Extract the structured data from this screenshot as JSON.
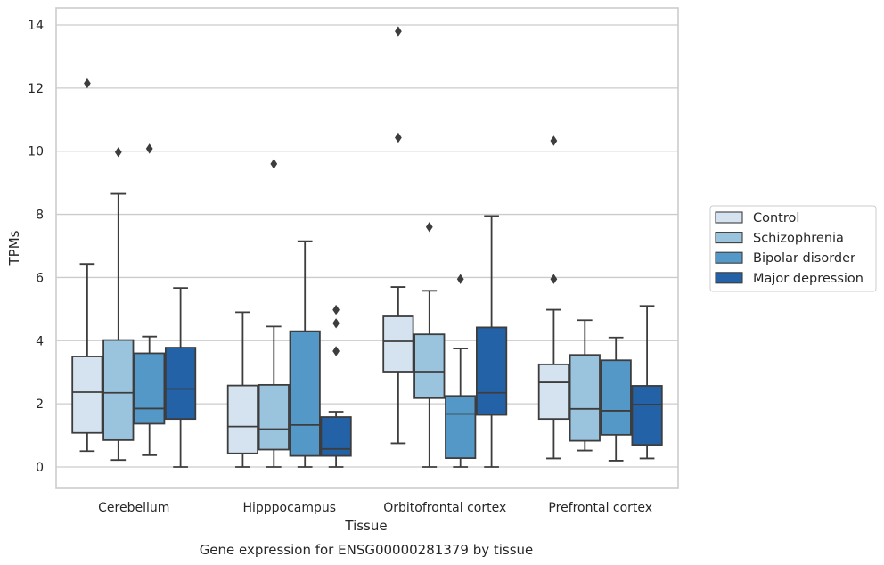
{
  "caption": "Gene expression for ENSG00000281379 by tissue",
  "chart_data": {
    "type": "boxplot",
    "title": "",
    "xlabel": "Tissue",
    "ylabel": "TPMs",
    "ylim": [
      -0.65,
      14.5
    ],
    "yticks": [
      0,
      2,
      4,
      6,
      8,
      10,
      12,
      14
    ],
    "grid": "horizontal",
    "legend_position": "right",
    "categories": [
      "Cerebellum",
      "Hipppocampus",
      "Orbitofrontal cortex",
      "Prefrontal cortex"
    ],
    "series": [
      {
        "name": "Control",
        "color": "#d5e3f1",
        "boxes": [
          {
            "whisker_low": 0.5,
            "q1": 1.08,
            "median": 2.37,
            "q3": 3.5,
            "whisker_high": 6.43,
            "outliers": [
              12.15
            ]
          },
          {
            "whisker_low": 0.0,
            "q1": 0.43,
            "median": 1.28,
            "q3": 2.58,
            "whisker_high": 4.9,
            "outliers": []
          },
          {
            "whisker_low": 0.75,
            "q1": 3.02,
            "median": 3.98,
            "q3": 4.77,
            "whisker_high": 5.7,
            "outliers": [
              13.8,
              10.43
            ]
          },
          {
            "whisker_low": 0.27,
            "q1": 1.52,
            "median": 2.68,
            "q3": 3.25,
            "whisker_high": 4.98,
            "outliers": [
              10.33,
              5.95
            ]
          }
        ]
      },
      {
        "name": "Schizophrenia",
        "color": "#9ac4de",
        "boxes": [
          {
            "whisker_low": 0.22,
            "q1": 0.85,
            "median": 2.35,
            "q3": 4.02,
            "whisker_high": 8.65,
            "outliers": [
              9.97
            ]
          },
          {
            "whisker_low": 0.0,
            "q1": 0.55,
            "median": 1.2,
            "q3": 2.6,
            "whisker_high": 4.45,
            "outliers": [
              9.6
            ]
          },
          {
            "whisker_low": 0.0,
            "q1": 2.18,
            "median": 3.02,
            "q3": 4.2,
            "whisker_high": 5.58,
            "outliers": [
              7.6
            ]
          },
          {
            "whisker_low": 0.52,
            "q1": 0.83,
            "median": 1.84,
            "q3": 3.55,
            "whisker_high": 4.65,
            "outliers": []
          }
        ]
      },
      {
        "name": "Bipolar disorder",
        "color": "#5498c8",
        "boxes": [
          {
            "whisker_low": 0.37,
            "q1": 1.37,
            "median": 1.85,
            "q3": 3.6,
            "whisker_high": 4.13,
            "outliers": [
              10.08
            ]
          },
          {
            "whisker_low": 0.0,
            "q1": 0.35,
            "median": 1.33,
            "q3": 4.3,
            "whisker_high": 7.15,
            "outliers": []
          },
          {
            "whisker_low": 0.0,
            "q1": 0.28,
            "median": 1.68,
            "q3": 2.25,
            "whisker_high": 3.75,
            "outliers": [
              5.95
            ]
          },
          {
            "whisker_low": 0.2,
            "q1": 1.02,
            "median": 1.78,
            "q3": 3.38,
            "whisker_high": 4.1,
            "outliers": []
          }
        ]
      },
      {
        "name": "Major depression",
        "color": "#2462a8",
        "boxes": [
          {
            "whisker_low": 0.0,
            "q1": 1.52,
            "median": 2.47,
            "q3": 3.78,
            "whisker_high": 5.67,
            "outliers": []
          },
          {
            "whisker_low": 0.0,
            "q1": 0.35,
            "median": 0.57,
            "q3": 1.58,
            "whisker_high": 1.75,
            "outliers": [
              4.98,
              4.55,
              3.67
            ]
          },
          {
            "whisker_low": 0.0,
            "q1": 1.65,
            "median": 2.35,
            "q3": 4.42,
            "whisker_high": 7.95,
            "outliers": []
          },
          {
            "whisker_low": 0.27,
            "q1": 0.7,
            "median": 1.98,
            "q3": 2.57,
            "whisker_high": 5.1,
            "outliers": []
          }
        ]
      }
    ]
  }
}
